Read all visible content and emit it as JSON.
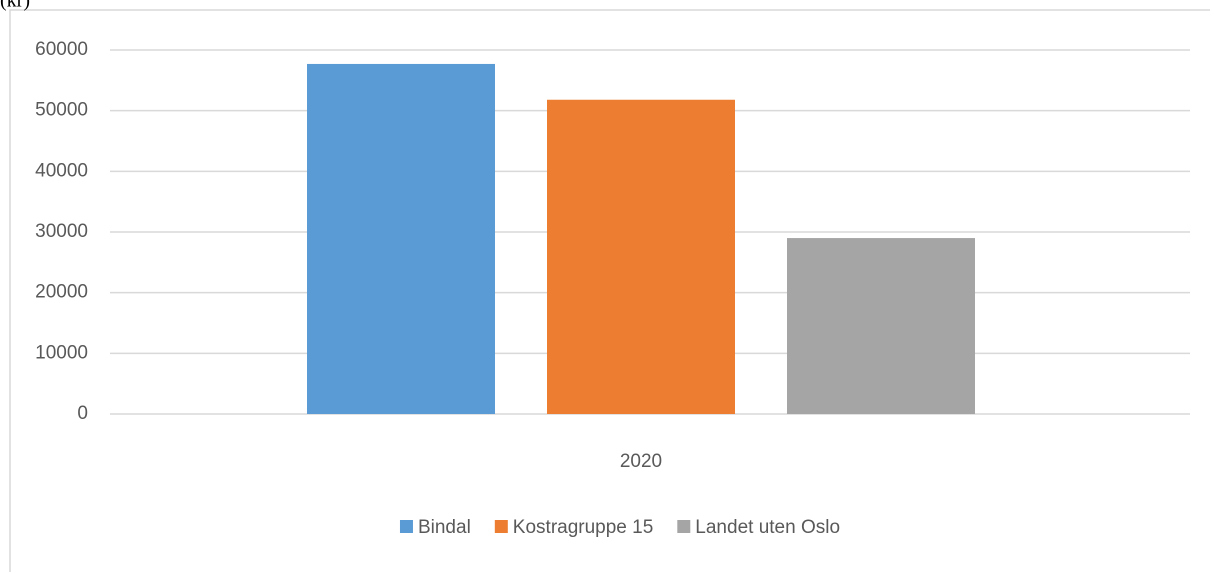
{
  "chart_data": {
    "type": "bar",
    "title": "(kr)",
    "categories": [
      "2020"
    ],
    "series": [
      {
        "name": "Bindal",
        "color": "#5b9bd5",
        "values": [
          57700
        ]
      },
      {
        "name": "Kostragruppe 15",
        "color": "#ed7d31",
        "values": [
          51800
        ]
      },
      {
        "name": "Landet uten Oslo",
        "color": "#a5a5a5",
        "values": [
          29000
        ]
      }
    ],
    "ylim": [
      0,
      60000
    ],
    "yticks": [
      0,
      10000,
      20000,
      30000,
      40000,
      50000,
      60000
    ],
    "grid": true,
    "legend": "bottom"
  }
}
